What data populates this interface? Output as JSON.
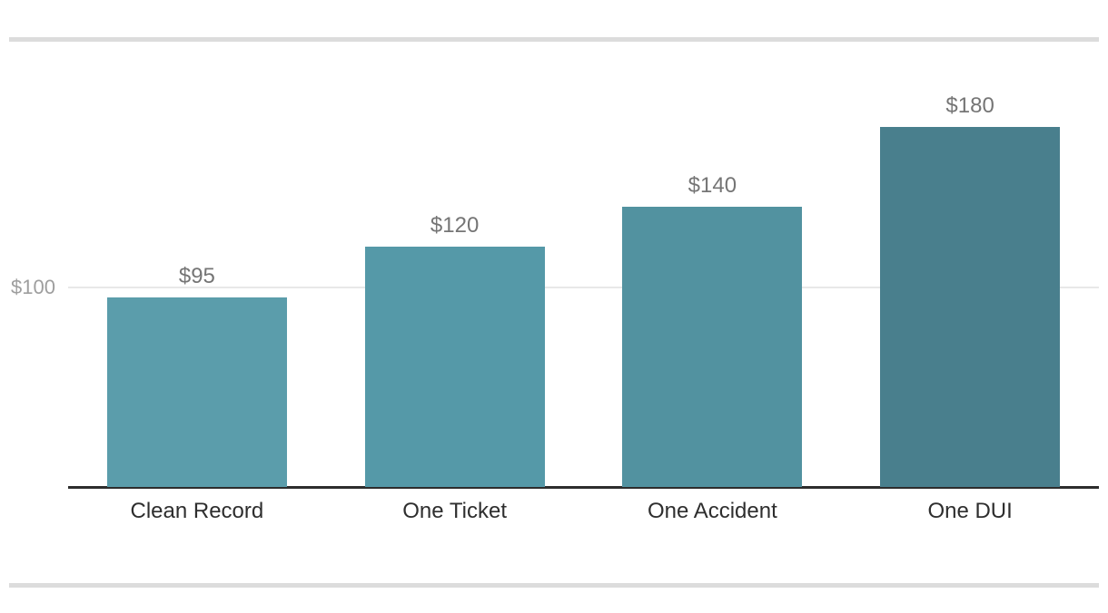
{
  "chart_data": {
    "type": "bar",
    "title": "",
    "xlabel": "",
    "ylabel": "",
    "categories": [
      "Clean Record",
      "One Ticket",
      "One Accident",
      "One DUI"
    ],
    "values": [
      95,
      120,
      140,
      180
    ],
    "value_labels": [
      "$95",
      "$120",
      "$140",
      "$180"
    ],
    "bar_colors": [
      "#5b9dab",
      "#5599a8",
      "#5292a0",
      "#497f8d"
    ],
    "ylim": [
      0,
      216
    ],
    "gridlines": [
      {
        "value": 100,
        "label": "$100"
      }
    ],
    "legend_position": "none",
    "grid": "single-line",
    "value_label_color": "#757575",
    "tick_label_color": "#9e9e9e",
    "category_label_color": "#2e2e2e",
    "axis_color": "#2d2d2d",
    "gridline_color": "#e8e8e8"
  }
}
